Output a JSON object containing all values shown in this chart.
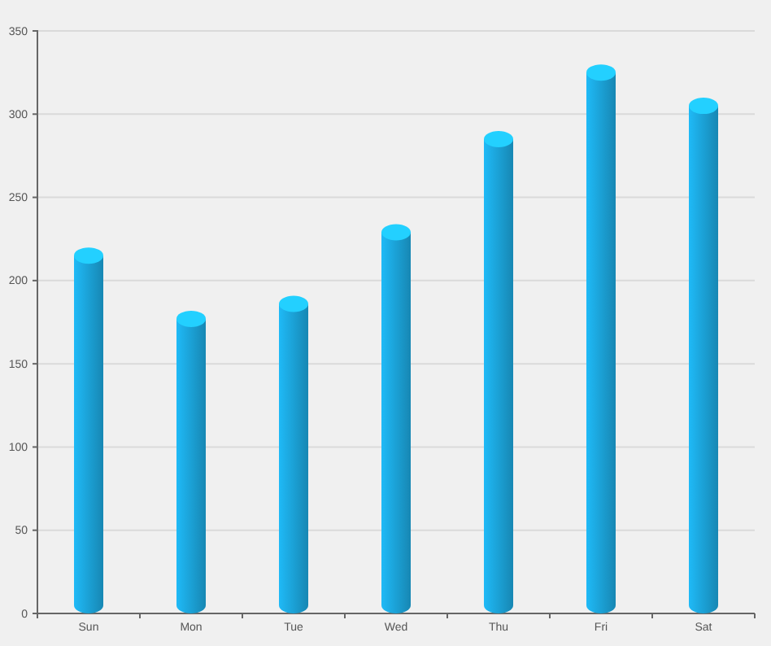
{
  "chart_data": {
    "type": "bar",
    "categories": [
      "Sun",
      "Mon",
      "Tue",
      "Wed",
      "Thu",
      "Fri",
      "Sat"
    ],
    "values": [
      215,
      177,
      186,
      229,
      285,
      325,
      305
    ],
    "color": "#1a9ccf",
    "ylim": [
      0,
      350
    ],
    "yticks": [
      0,
      50,
      100,
      150,
      200,
      250,
      300,
      350
    ],
    "grid": "y"
  }
}
